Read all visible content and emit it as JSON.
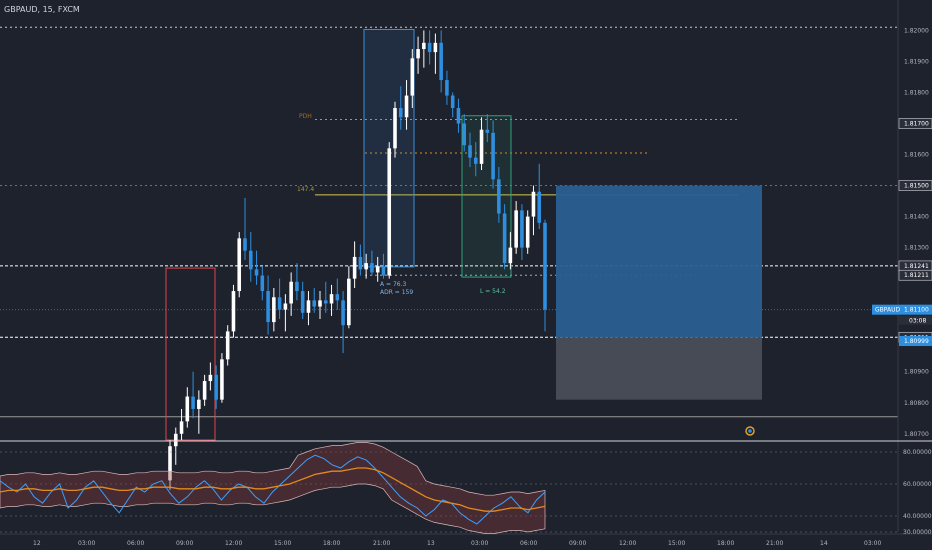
{
  "header": {
    "symbol": "GBPAUD, 15, FXCM"
  },
  "colors": {
    "bg": "#1e222d",
    "up": "#ffffff",
    "down": "#2e8fe0",
    "grid_dotted": "#c8c8c8",
    "blue_line": "#2f7fd8",
    "orange": "#e08a1f",
    "yellow": "#d7c84a",
    "red_box": "#e0474c",
    "blue_box": "#3a8fd8",
    "green_box": "#2fa27a",
    "target_zone": "#2a5f92",
    "stop_zone": "#4a4e59",
    "price_tag": "#2e8fe0"
  },
  "chart_data": [
    {
      "type": "candlestick",
      "title": "GBPAUD, 15, FXCM",
      "xlabel": "",
      "ylabel": "",
      "ylim": [
        1.8068,
        1.8204
      ],
      "x_ticks": [
        "12",
        "03:00",
        "06:00",
        "09:00",
        "12:00",
        "15:00",
        "18:00",
        "21:00",
        "13",
        "03:00",
        "06:00",
        "09:00",
        "12:00",
        "15:00",
        "18:00",
        "21:00",
        "14",
        "03:00"
      ],
      "y_ticks": [
        "1.82000",
        "1.81900",
        "1.81800",
        "1.81700",
        "1.81600",
        "1.81500",
        "1.81400",
        "1.81300",
        "1.81211",
        "1.81100",
        "1.81011",
        "1.80999",
        "1.80900",
        "1.80800",
        "1.80700"
      ],
      "price_labels": [
        {
          "text": "1.81241",
          "value": 1.81241,
          "style": "white"
        },
        {
          "text": "1.81211",
          "value": 1.81211,
          "style": "white"
        },
        {
          "text": "1.81700",
          "value": 1.817,
          "style": "white"
        },
        {
          "text": "1.81500",
          "value": 1.815,
          "style": "white"
        },
        {
          "text": "1.81011",
          "value": 1.81011,
          "style": "white"
        },
        {
          "text": "1.80999",
          "value": 1.80999,
          "style": "blue"
        }
      ],
      "current_price": {
        "symbol": "GBPAUD",
        "price": "1.81100",
        "value": 1.811,
        "countdown": "03:08"
      },
      "annotations": {
        "range_label": "A = 76.3",
        "adr_label": "ADR = 159",
        "green_label": "L = 54.2",
        "pdh_label": "PDH",
        "level_label": "147.4"
      },
      "levels": [
        {
          "name": "top-dotted",
          "value": 1.8201
        },
        {
          "name": "pdh",
          "value": 1.81713
        },
        {
          "name": "orange-mid",
          "value": 1.81605
        },
        {
          "name": "yellow-147",
          "value": 1.8147
        },
        {
          "name": "blue-dotted",
          "value": 1.815
        },
        {
          "name": "white-upper",
          "value": 1.81241
        },
        {
          "name": "white-lower",
          "value": 1.81011
        },
        {
          "name": "mid-dotted",
          "value": 1.81211
        },
        {
          "name": "low-dotted",
          "value": 1.80755
        }
      ],
      "candles": [
        [
          1.8055,
          1.8068,
          1.8052,
          1.8066
        ],
        [
          1.8066,
          1.8072,
          1.806,
          1.807
        ],
        [
          1.807,
          1.8078,
          1.8068,
          1.8074
        ],
        [
          1.8074,
          1.8085,
          1.8072,
          1.8082
        ],
        [
          1.8082,
          1.809,
          1.8075,
          1.8078
        ],
        [
          1.8078,
          1.8084,
          1.807,
          1.8081
        ],
        [
          1.8081,
          1.8089,
          1.8079,
          1.8087
        ],
        [
          1.8087,
          1.8093,
          1.8084,
          1.8089
        ],
        [
          1.8089,
          1.8092,
          1.8078,
          1.8081
        ],
        [
          1.8081,
          1.8096,
          1.808,
          1.8094
        ],
        [
          1.8094,
          1.8105,
          1.8092,
          1.8103
        ],
        [
          1.8103,
          1.8118,
          1.8101,
          1.8116
        ],
        [
          1.8116,
          1.8135,
          1.8114,
          1.8133
        ],
        [
          1.8133,
          1.8146,
          1.8126,
          1.8129
        ],
        [
          1.8129,
          1.8135,
          1.8119,
          1.8123
        ],
        [
          1.8123,
          1.8129,
          1.8118,
          1.8121
        ],
        [
          1.8121,
          1.8124,
          1.8113,
          1.8116
        ],
        [
          1.8116,
          1.8121,
          1.8102,
          1.8106
        ],
        [
          1.8106,
          1.8117,
          1.8103,
          1.8114
        ],
        [
          1.8114,
          1.812,
          1.8107,
          1.811
        ],
        [
          1.811,
          1.8115,
          1.8103,
          1.8112
        ],
        [
          1.8112,
          1.8122,
          1.8108,
          1.8119
        ],
        [
          1.8119,
          1.8125,
          1.8113,
          1.8116
        ],
        [
          1.8116,
          1.8119,
          1.8107,
          1.8109
        ],
        [
          1.8109,
          1.8116,
          1.8105,
          1.8113
        ],
        [
          1.8113,
          1.8117,
          1.8109,
          1.8111
        ],
        [
          1.8111,
          1.8116,
          1.8107,
          1.8113
        ],
        [
          1.8113,
          1.8119,
          1.8109,
          1.8112
        ],
        [
          1.8112,
          1.8118,
          1.8108,
          1.8115
        ],
        [
          1.8115,
          1.812,
          1.811,
          1.8113
        ],
        [
          1.8113,
          1.8116,
          1.8096,
          1.8105
        ],
        [
          1.8105,
          1.8124,
          1.8104,
          1.812
        ],
        [
          1.812,
          1.8132,
          1.8117,
          1.8127
        ],
        [
          1.8127,
          1.8131,
          1.8121,
          1.8123
        ],
        [
          1.8123,
          1.8128,
          1.812,
          1.8125
        ],
        [
          1.8125,
          1.8129,
          1.8121,
          1.8122
        ],
        [
          1.8122,
          1.8127,
          1.8119,
          1.8124
        ],
        [
          1.8124,
          1.8128,
          1.812,
          1.8121
        ],
        [
          1.8121,
          1.8164,
          1.812,
          1.8162
        ],
        [
          1.8162,
          1.8177,
          1.8159,
          1.8175
        ],
        [
          1.8175,
          1.8182,
          1.8168,
          1.8172
        ],
        [
          1.8172,
          1.8184,
          1.8168,
          1.8179
        ],
        [
          1.8179,
          1.8194,
          1.8175,
          1.8191
        ],
        [
          1.8191,
          1.8198,
          1.8186,
          1.8194
        ],
        [
          1.8194,
          1.82,
          1.8188,
          1.8196
        ],
        [
          1.8196,
          1.82,
          1.8189,
          1.8193
        ],
        [
          1.8193,
          1.8199,
          1.8186,
          1.8196
        ],
        [
          1.8196,
          1.82,
          1.818,
          1.8184
        ],
        [
          1.8184,
          1.8187,
          1.8176,
          1.8179
        ],
        [
          1.8179,
          1.818,
          1.8172,
          1.8175
        ],
        [
          1.8175,
          1.8178,
          1.8167,
          1.817
        ],
        [
          1.817,
          1.8173,
          1.8161,
          1.8163
        ],
        [
          1.8163,
          1.8167,
          1.8156,
          1.8159
        ],
        [
          1.8159,
          1.8164,
          1.8153,
          1.8157
        ],
        [
          1.8157,
          1.8172,
          1.8155,
          1.8168
        ],
        [
          1.8168,
          1.8173,
          1.8164,
          1.8167
        ],
        [
          1.8167,
          1.8171,
          1.8149,
          1.8152
        ],
        [
          1.8152,
          1.8156,
          1.8138,
          1.8141
        ],
        [
          1.8141,
          1.8144,
          1.8123,
          1.8125
        ],
        [
          1.8125,
          1.8135,
          1.8123,
          1.813
        ],
        [
          1.813,
          1.8145,
          1.8128,
          1.8142
        ],
        [
          1.8142,
          1.8144,
          1.8126,
          1.813
        ],
        [
          1.813,
          1.8142,
          1.8128,
          1.814
        ],
        [
          1.814,
          1.815,
          1.8134,
          1.8148
        ],
        [
          1.8148,
          1.8157,
          1.8136,
          1.8138
        ],
        [
          1.8138,
          1.8139,
          1.8103,
          1.811
        ]
      ],
      "bias_zones": [
        {
          "name": "target-zone",
          "from": 1.81011,
          "to": 1.815
        },
        {
          "name": "stop-zone",
          "from": 1.8081,
          "to": 1.81011
        }
      ]
    },
    {
      "type": "line",
      "title": "",
      "ylim": [
        30,
        85
      ],
      "y_ticks": [
        "80.00000",
        "60.00000",
        "40.00000",
        "30.00000"
      ],
      "series": [
        {
          "values": [
            62,
            58,
            55,
            60,
            52,
            48,
            55,
            60,
            45,
            50,
            58,
            62,
            55,
            48,
            42,
            50,
            58,
            55,
            60,
            62,
            54,
            48,
            52,
            58,
            62,
            57,
            50,
            56,
            60,
            58,
            52,
            48,
            55,
            60,
            65,
            70,
            75,
            78,
            76,
            72,
            70,
            74,
            77,
            75,
            70,
            64,
            58,
            52,
            48,
            45,
            40,
            44,
            50,
            48,
            42,
            38,
            35,
            40,
            45,
            48,
            52,
            46,
            42,
            50,
            55
          ]
        },
        {
          "values": [
            55,
            56,
            56,
            57,
            57,
            56,
            56,
            57,
            56,
            56,
            57,
            58,
            58,
            57,
            56,
            56,
            57,
            57,
            58,
            58,
            58,
            57,
            57,
            57,
            58,
            58,
            57,
            57,
            58,
            58,
            57,
            57,
            58,
            59,
            60,
            62,
            64,
            66,
            67,
            68,
            68,
            69,
            70,
            70,
            69,
            67,
            64,
            61,
            58,
            55,
            52,
            50,
            49,
            48,
            47,
            45,
            44,
            43,
            43,
            44,
            45,
            45,
            44,
            45,
            46
          ]
        }
      ]
    }
  ]
}
